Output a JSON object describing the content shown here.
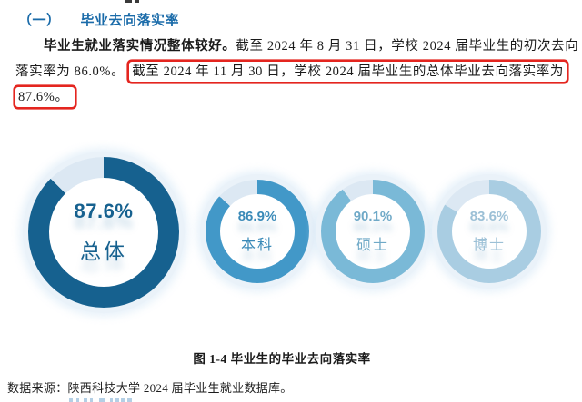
{
  "heading": {
    "number": "（一）",
    "title": "毕业去向落实率"
  },
  "paragraph": {
    "line1_bold": "毕业生就业落实情况整体较好。",
    "line1_rest": "截至 2024 年 8 月 31 日，学校 2024 届毕业生的初次去向",
    "line2_plain": "落实率为 86.0%。",
    "line2_highlight": "截至 2024 年 11 月 30 日，学校 2024 届毕业生的总体毕业去向落实率为",
    "line3_highlight": "87.6%。",
    "highlight_color": "#e4251f"
  },
  "chart_data": {
    "type": "pie",
    "subtype": "donut",
    "title": "图 1-4 毕业生的毕业去向落实率",
    "unit": "%",
    "remainder_color": "#dce8f3",
    "legend_position": "none",
    "series": [
      {
        "name": "总体",
        "value": 87.6,
        "display": "87.6%",
        "color": "#16618f",
        "text_color": "#16618f"
      },
      {
        "name": "本科",
        "value": 86.9,
        "display": "86.9%",
        "color": "#4298c8",
        "text_color": "#3a8ab8"
      },
      {
        "name": "硕士",
        "value": 90.1,
        "display": "90.1%",
        "color": "#7ab9d7",
        "text_color": "#6fa9c7"
      },
      {
        "name": "博士",
        "value": 83.6,
        "display": "83.6%",
        "color": "#a9cde2",
        "text_color": "#9cc0d6"
      }
    ]
  },
  "caption": "图 1-4 毕业生的毕业去向落实率",
  "datasource": "数据来源：陕西科技大学 2024 届毕业生就业数据库。"
}
